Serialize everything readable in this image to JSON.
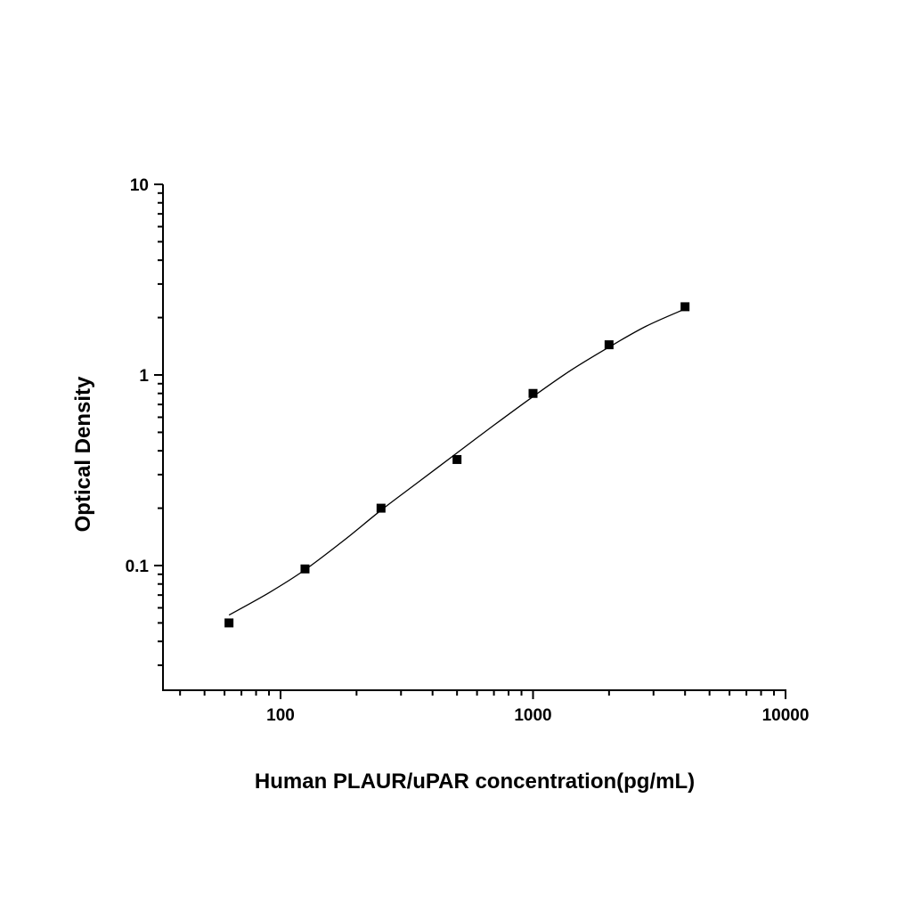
{
  "chart_data": {
    "type": "scatter",
    "title": "",
    "xlabel": "Human PLAUR/uPAR concentration(pg/mL)",
    "ylabel": "Optical Density",
    "xscale": "log",
    "yscale": "log",
    "xlim": [
      40,
      10000
    ],
    "ylim": [
      0.022,
      10
    ],
    "x_ticks": [
      100,
      1000,
      10000
    ],
    "x_tick_labels": [
      "100",
      "1000",
      "10000"
    ],
    "y_ticks": [
      0.1,
      1,
      10
    ],
    "y_tick_labels": [
      "0.1",
      "1",
      "10"
    ],
    "grid": false,
    "legend": "none",
    "series": [
      {
        "marker": "square",
        "x": [
          62.5,
          125,
          250,
          500,
          1000,
          2000,
          4000
        ],
        "y": [
          0.05,
          0.096,
          0.2,
          0.36,
          0.8,
          1.44,
          2.28
        ]
      }
    ],
    "fit_curve": {
      "type": "line",
      "x": [
        62.5,
        90,
        125,
        180,
        250,
        350,
        500,
        700,
        1000,
        1400,
        2000,
        2800,
        4000
      ],
      "y": [
        0.055,
        0.072,
        0.095,
        0.137,
        0.195,
        0.273,
        0.39,
        0.545,
        0.77,
        1.05,
        1.4,
        1.8,
        2.22
      ]
    },
    "colors": {
      "marks": "#000000",
      "background": "#ffffff"
    }
  }
}
